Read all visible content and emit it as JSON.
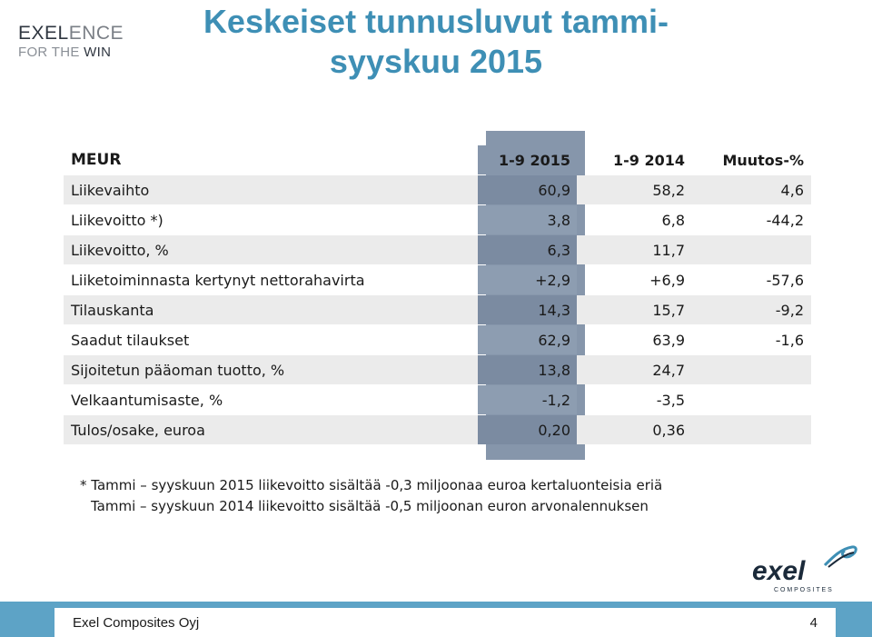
{
  "brand": {
    "line1_a": "EXEL",
    "line1_b": "ENCE",
    "line2_a": "FOR THE ",
    "line2_b": "WIN"
  },
  "title": {
    "line1": "Keskeiset tunnusluvut tammi-",
    "line2": "syyskuu 2015"
  },
  "table": {
    "headers": [
      "MEUR",
      "1-9 2015",
      "1-9 2014",
      "Muutos-%"
    ],
    "rows": [
      [
        "Liikevaihto",
        "60,9",
        "58,2",
        "4,6"
      ],
      [
        "Liikevoitto *)",
        "3,8",
        "6,8",
        "-44,2"
      ],
      [
        "Liikevoitto, %",
        "6,3",
        "11,7",
        ""
      ],
      [
        "Liiketoiminnasta kertynyt nettorahavirta",
        "+2,9",
        "+6,9",
        "-57,6"
      ],
      [
        "Tilauskanta",
        "14,3",
        "15,7",
        "-9,2"
      ],
      [
        "Saadut tilaukset",
        "62,9",
        "63,9",
        "-1,6"
      ],
      [
        "Sijoitetun pääoman tuotto, %",
        "13,8",
        "24,7",
        ""
      ],
      [
        "Velkaantumisaste, %",
        "-1,2",
        "-3,5",
        ""
      ],
      [
        "Tulos/osake, euroa",
        "0,20",
        "0,36",
        ""
      ]
    ]
  },
  "notes": {
    "line1": "* Tammi – syyskuun 2015 liikevoitto sisältää -0,3 miljoonaa euroa kertaluonteisia eriä",
    "line2": "Tammi – syyskuun 2014 liikevoitto sisältää -0,5 miljoonan euron arvonalennuksen"
  },
  "logo": {
    "word": "exel",
    "sub": "C O M P O S I T E S"
  },
  "footer": {
    "company": "Exel Composites Oyj",
    "page": "4"
  },
  "colors": {
    "accent": "#3e8fb5",
    "footer": "#5da3c6",
    "band": "#8696ab"
  }
}
